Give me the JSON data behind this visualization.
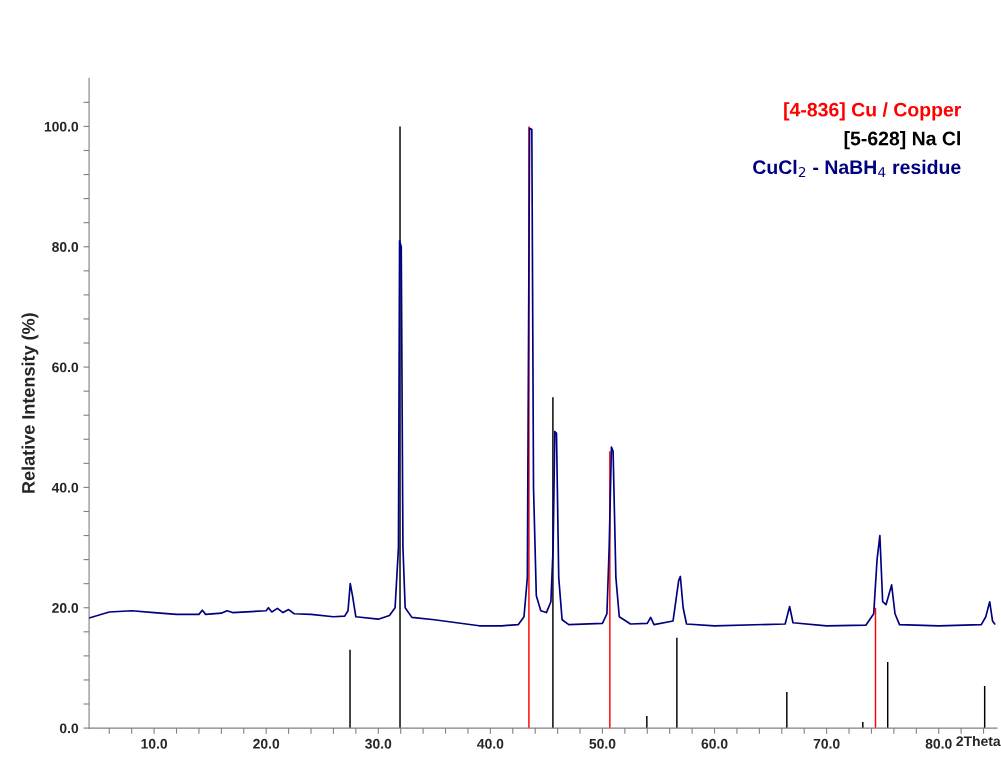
{
  "chart_data": {
    "type": "line",
    "ylabel": "Relative Intensity (%)",
    "xlabel": "2Theta",
    "xlim": [
      4.2,
      85.2
    ],
    "ylim": [
      0,
      108
    ],
    "xticks": [
      {
        "value": 6,
        "label": null
      },
      {
        "value": 8,
        "label": null
      },
      {
        "value": 10,
        "label": "10.0"
      },
      {
        "value": 12,
        "label": null
      },
      {
        "value": 14,
        "label": null
      },
      {
        "value": 16,
        "label": null
      },
      {
        "value": 18,
        "label": null
      },
      {
        "value": 20,
        "label": "20.0"
      },
      {
        "value": 22,
        "label": null
      },
      {
        "value": 24,
        "label": null
      },
      {
        "value": 26,
        "label": null
      },
      {
        "value": 28,
        "label": null
      },
      {
        "value": 30,
        "label": "30.0"
      },
      {
        "value": 32,
        "label": null
      },
      {
        "value": 34,
        "label": null
      },
      {
        "value": 36,
        "label": null
      },
      {
        "value": 38,
        "label": null
      },
      {
        "value": 40,
        "label": "40.0"
      },
      {
        "value": 42,
        "label": null
      },
      {
        "value": 44,
        "label": null
      },
      {
        "value": 46,
        "label": null
      },
      {
        "value": 48,
        "label": null
      },
      {
        "value": 50,
        "label": "50.0"
      },
      {
        "value": 52,
        "label": null
      },
      {
        "value": 54,
        "label": null
      },
      {
        "value": 56,
        "label": null
      },
      {
        "value": 58,
        "label": null
      },
      {
        "value": 60,
        "label": "60.0"
      },
      {
        "value": 62,
        "label": null
      },
      {
        "value": 64,
        "label": null
      },
      {
        "value": 66,
        "label": null
      },
      {
        "value": 68,
        "label": null
      },
      {
        "value": 70,
        "label": "70.0"
      },
      {
        "value": 72,
        "label": null
      },
      {
        "value": 74,
        "label": null
      },
      {
        "value": 76,
        "label": null
      },
      {
        "value": 78,
        "label": null
      },
      {
        "value": 80,
        "label": "80.0"
      },
      {
        "value": 82,
        "label": null
      },
      {
        "value": 84,
        "label": null
      }
    ],
    "yticks": [
      {
        "value": 0,
        "label": "0.0"
      },
      {
        "value": 4,
        "label": null
      },
      {
        "value": 8,
        "label": null
      },
      {
        "value": 12,
        "label": null
      },
      {
        "value": 16,
        "label": null
      },
      {
        "value": 20,
        "label": "20.0"
      },
      {
        "value": 24,
        "label": null
      },
      {
        "value": 28,
        "label": null
      },
      {
        "value": 32,
        "label": null
      },
      {
        "value": 36,
        "label": null
      },
      {
        "value": 40,
        "label": "40.0"
      },
      {
        "value": 44,
        "label": null
      },
      {
        "value": 48,
        "label": null
      },
      {
        "value": 52,
        "label": null
      },
      {
        "value": 56,
        "label": null
      },
      {
        "value": 60,
        "label": "60.0"
      },
      {
        "value": 64,
        "label": null
      },
      {
        "value": 68,
        "label": null
      },
      {
        "value": 72,
        "label": null
      },
      {
        "value": 76,
        "label": null
      },
      {
        "value": 80,
        "label": "80.0"
      },
      {
        "value": 84,
        "label": null
      },
      {
        "value": 88,
        "label": null
      },
      {
        "value": 92,
        "label": null
      },
      {
        "value": 96,
        "label": null
      },
      {
        "value": 100,
        "label": "100.0"
      },
      {
        "value": 104,
        "label": null
      }
    ],
    "legend": "top right",
    "marker": "none",
    "grid": false,
    "series": [
      {
        "name": "[4-836] Cu / Copper",
        "type": "bar",
        "color": "#ff0000",
        "x": [
          43.44,
          50.66,
          74.36
        ],
        "values": [
          100,
          46,
          20
        ]
      },
      {
        "name": "[5-628] Na Cl",
        "type": "bar",
        "color": "#000000",
        "x": [
          27.48,
          31.94,
          45.58,
          53.96,
          56.64,
          66.45,
          73.23,
          75.45,
          84.1
        ],
        "values": [
          13,
          100,
          55,
          2,
          15,
          6,
          1,
          11,
          7
        ]
      },
      {
        "name": "CuCl$_{2}$ - NaBH$_{4}$ residue",
        "color": "#000080",
        "x": [
          4.2,
          6,
          8,
          10,
          12,
          14,
          14.3,
          14.6,
          16,
          16.5,
          17,
          20,
          20.2,
          20.5,
          21,
          21.5,
          22,
          22.5,
          24,
          26,
          27,
          27.3,
          27.5,
          27.7,
          28,
          30,
          31,
          31.5,
          31.8,
          31.9,
          32.05,
          32.2,
          32.4,
          33,
          35,
          37,
          39,
          41,
          42.5,
          43.0,
          43.3,
          43.5,
          43.7,
          43.85,
          44.1,
          44.5,
          45.0,
          45.4,
          45.6,
          45.75,
          45.9,
          46.1,
          46.4,
          47,
          50,
          50.4,
          50.6,
          50.8,
          50.95,
          51.2,
          51.5,
          52.5,
          54,
          54.3,
          54.6,
          56.3,
          56.8,
          56.95,
          57.2,
          57.5,
          60,
          66.3,
          66.7,
          67,
          70,
          73.5,
          74.2,
          74.5,
          74.75,
          75.0,
          75.3,
          75.8,
          76.1,
          76.5,
          80,
          83.8,
          84.2,
          84.55,
          84.8,
          85.0
        ],
        "values": [
          18.3,
          19.3,
          19.5,
          19.2,
          18.9,
          18.9,
          19.6,
          18.9,
          19.1,
          19.5,
          19.2,
          19.5,
          20.0,
          19.3,
          19.9,
          19.2,
          19.7,
          19.0,
          18.9,
          18.5,
          18.6,
          19.5,
          24,
          22,
          18.5,
          18.1,
          18.7,
          20,
          30,
          81,
          80,
          30,
          20,
          18.4,
          18.0,
          17.5,
          17,
          17,
          17.2,
          18.5,
          25,
          99.7,
          99.5,
          40,
          22,
          19.5,
          19.2,
          21,
          30,
          49.3,
          49,
          25,
          18,
          17.2,
          17.4,
          19,
          30,
          46.7,
          46,
          25,
          18.5,
          17.3,
          17.4,
          18.4,
          17.2,
          17.8,
          24.5,
          25.2,
          20,
          17.3,
          17.0,
          17.3,
          20.2,
          17.5,
          17,
          17.1,
          19,
          28,
          32,
          21,
          20.5,
          23.8,
          19,
          17.2,
          17,
          17.2,
          18.5,
          21,
          17.8,
          17.3
        ]
      }
    ]
  }
}
